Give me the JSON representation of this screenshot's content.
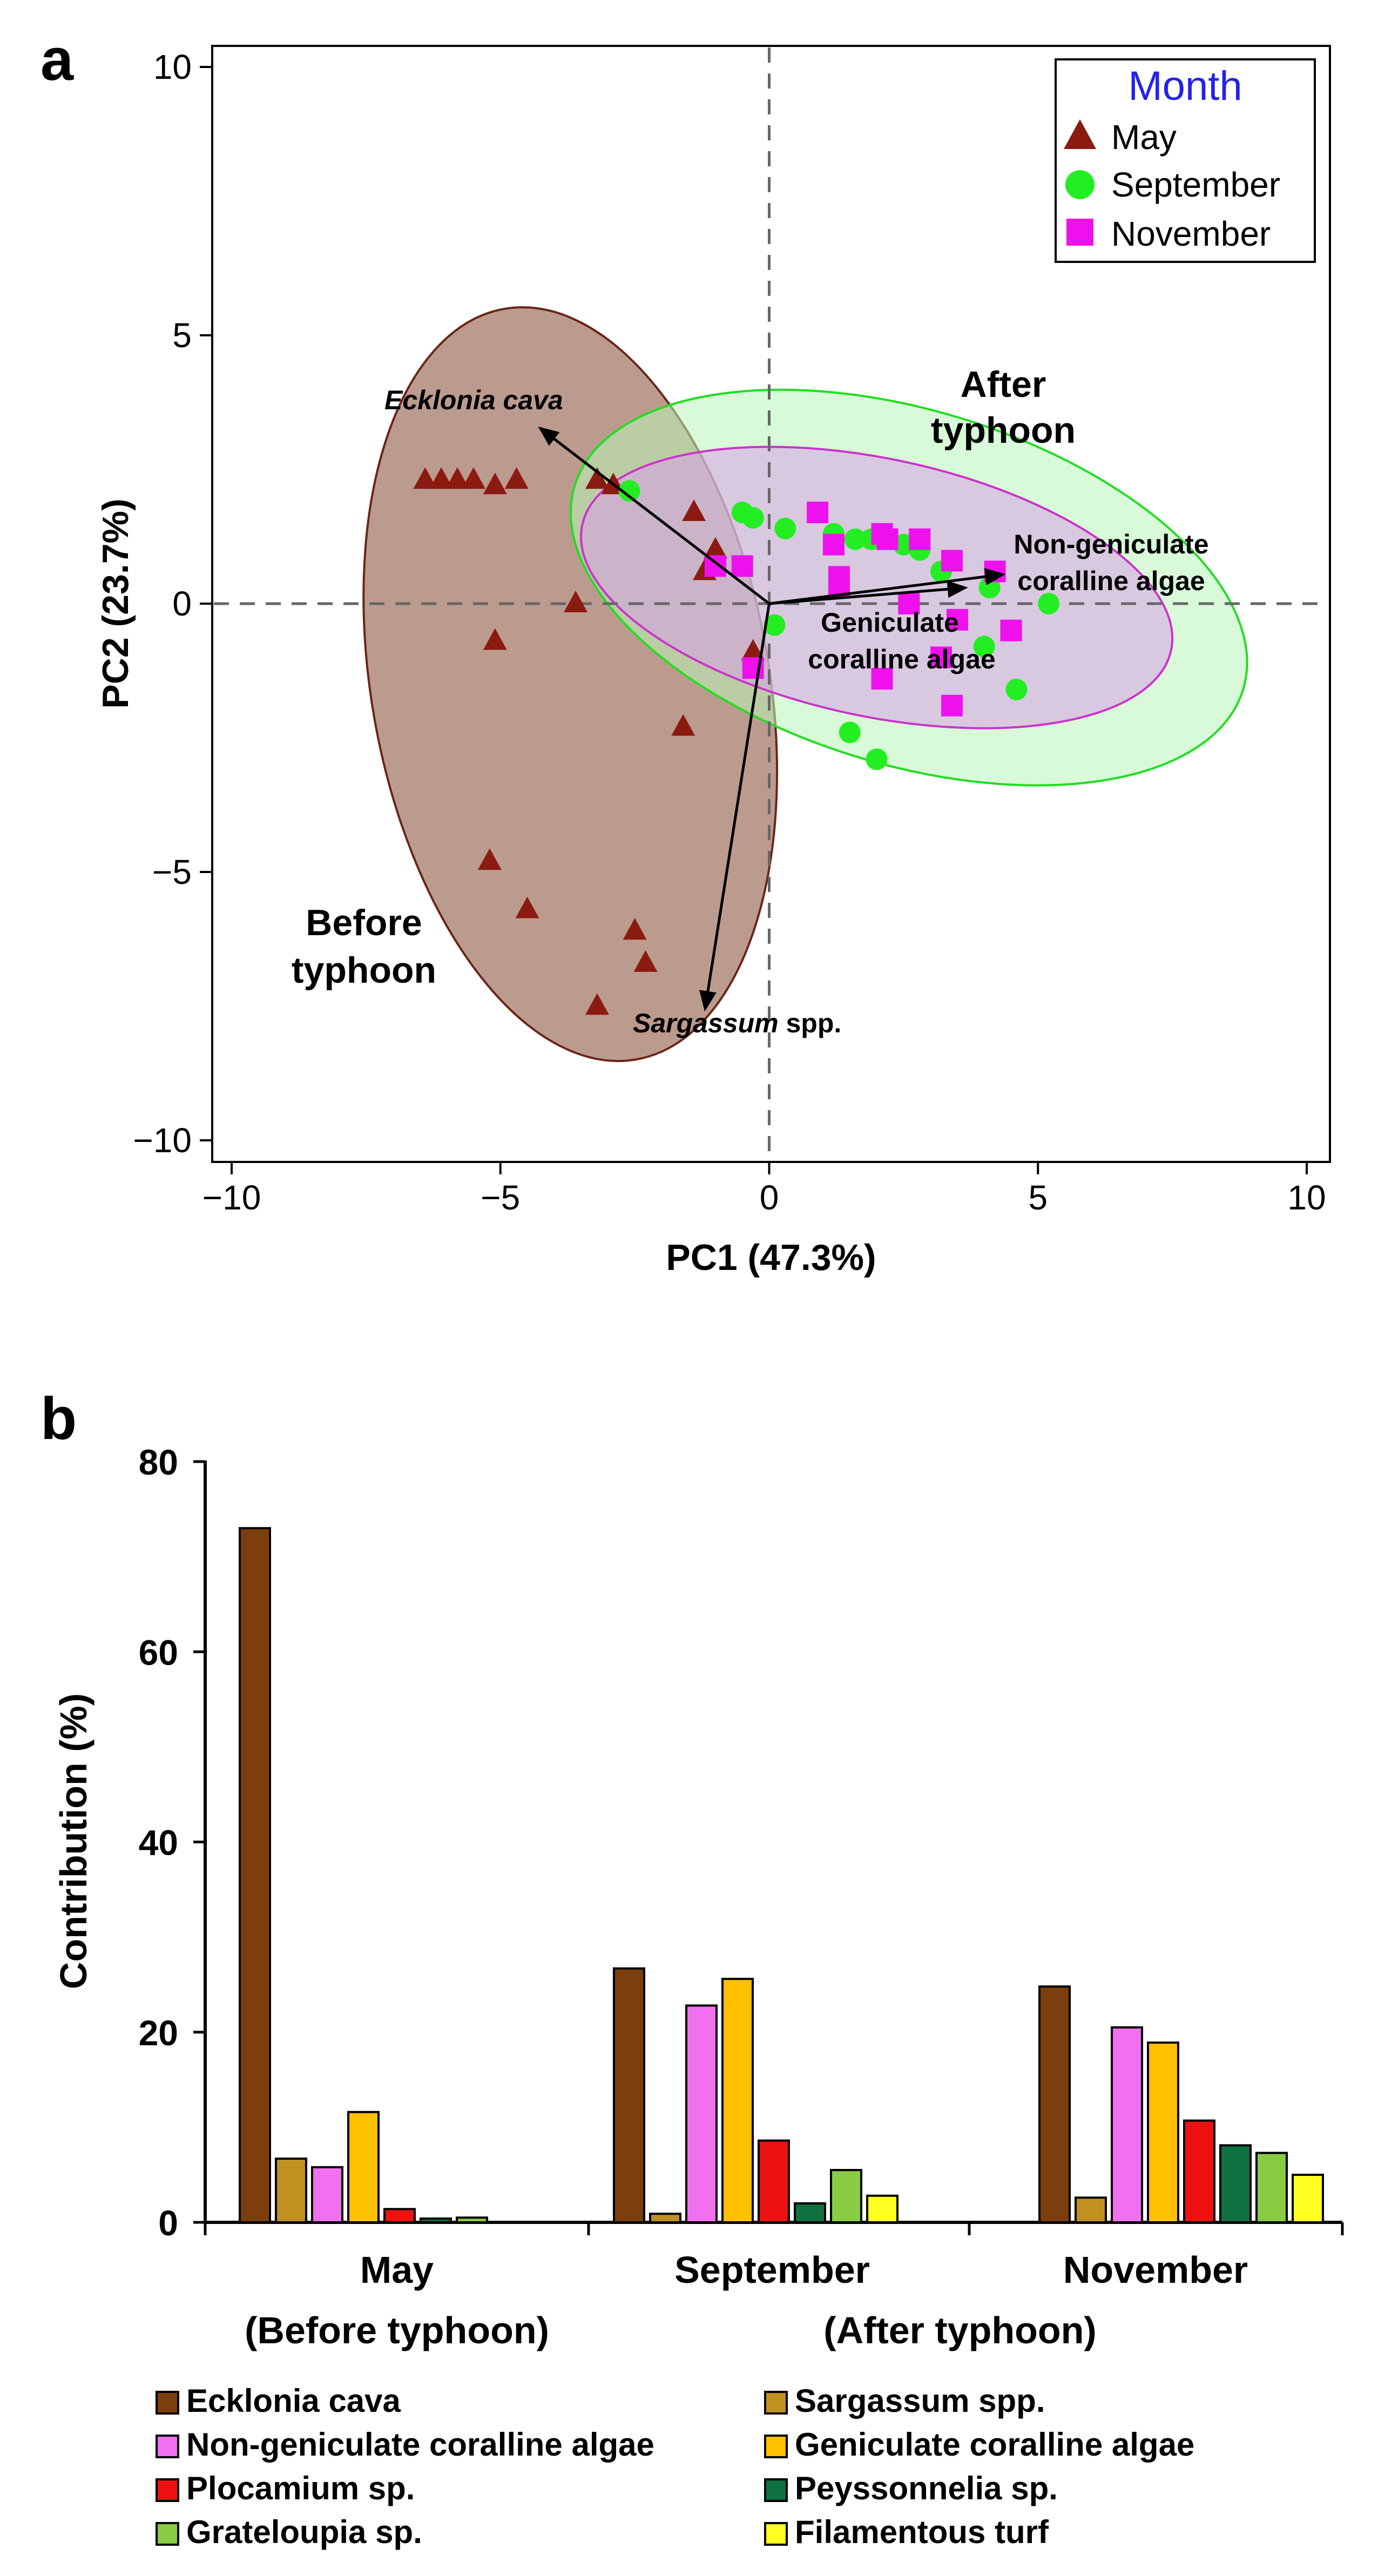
{
  "colors": {
    "may": "#8b1a10",
    "september": "#22ee22",
    "november": "#ee11ee",
    "may_ellipse_fill": "#a07060",
    "may_ellipse_stroke": "#6b2418",
    "sep_ellipse_fill": "#b8f5b8",
    "sep_ellipse_stroke": "#22dd22",
    "nov_ellipse_fill": "#d9a0e8",
    "nov_ellipse_stroke": "#cc33cc",
    "legend_title": "#2222ee",
    "series": [
      "#7b3f0e",
      "#c09020",
      "#f070f0",
      "#ffc000",
      "#ee1111",
      "#107040",
      "#88cc44",
      "#ffff22"
    ]
  },
  "chart_data": [
    {
      "panel": "a",
      "type": "scatter",
      "xlabel": "PC1 (47.3%)",
      "ylabel": "PC2 (23.7%)",
      "xlim": [
        -11,
        10.5
      ],
      "ylim": [
        -10.5,
        10.5
      ],
      "xticks": [
        -10,
        -5,
        0,
        5,
        10
      ],
      "yticks": [
        10,
        5,
        0,
        -5,
        -10
      ],
      "xtick_labels": [
        "−10",
        "−5",
        "0",
        "5",
        "10"
      ],
      "ytick_labels": [
        "10",
        "5",
        "0",
        "−5",
        "−10"
      ],
      "legend": {
        "title": "Month",
        "entries": [
          "May",
          "September",
          "November"
        ]
      },
      "annotations": {
        "after": [
          "After",
          "typhoon"
        ],
        "before": [
          "Before",
          "typhoon"
        ]
      },
      "vectors": [
        {
          "label": "Ecklonia cava",
          "italic_part": "Ecklonia cava",
          "rest": "",
          "x": -4.3,
          "y": 3.3
        },
        {
          "label": "Non-geniculate coralline algae",
          "line1": "Non-geniculate",
          "line2": "coralline algae",
          "x": 4.4,
          "y": 0.55
        },
        {
          "label": "Geniculate coralline algae",
          "line1": "Geniculate",
          "line2": "coralline algae",
          "x": 3.7,
          "y": 0.3
        },
        {
          "label": "Sargassum spp.",
          "italic_part": "Sargassum",
          "rest": " spp.",
          "x": -1.2,
          "y": -7.6
        }
      ],
      "ellipses": [
        {
          "series": "May",
          "cx": -3.7,
          "cy": -1.5,
          "rx": 3.7,
          "ry": 7.1,
          "angle": -10
        },
        {
          "series": "September",
          "cx": 2.6,
          "cy": 0.3,
          "rx": 6.5,
          "ry": 3.3,
          "angle": 17
        },
        {
          "series": "November",
          "cx": 2.0,
          "cy": 0.3,
          "rx": 5.6,
          "ry": 2.4,
          "angle": 12
        }
      ],
      "series": [
        {
          "name": "May",
          "marker": "triangle",
          "points": [
            [
              -6.4,
              2.3
            ],
            [
              -6.1,
              2.3
            ],
            [
              -5.8,
              2.3
            ],
            [
              -5.5,
              2.3
            ],
            [
              -5.1,
              2.2
            ],
            [
              -4.7,
              2.3
            ],
            [
              -3.2,
              2.3
            ],
            [
              -2.9,
              2.2
            ],
            [
              -1.4,
              1.7
            ],
            [
              -1.0,
              1.0
            ],
            [
              -1.2,
              0.6
            ],
            [
              -3.6,
              0.0
            ],
            [
              -5.1,
              -0.7
            ],
            [
              -0.3,
              -0.9
            ],
            [
              -1.6,
              -2.3
            ],
            [
              -5.2,
              -4.8
            ],
            [
              -4.5,
              -5.7
            ],
            [
              -2.5,
              -6.1
            ],
            [
              -2.3,
              -6.7
            ],
            [
              -3.2,
              -7.5
            ]
          ]
        },
        {
          "name": "September",
          "marker": "circle",
          "points": [
            [
              -2.6,
              2.1
            ],
            [
              -0.5,
              1.7
            ],
            [
              -0.3,
              1.6
            ],
            [
              0.3,
              1.4
            ],
            [
              1.2,
              1.3
            ],
            [
              1.6,
              1.2
            ],
            [
              1.9,
              1.2
            ],
            [
              2.5,
              1.1
            ],
            [
              2.8,
              1.0
            ],
            [
              3.2,
              0.6
            ],
            [
              4.1,
              0.3
            ],
            [
              5.2,
              0.0
            ],
            [
              0.1,
              -0.4
            ],
            [
              4.0,
              -0.8
            ],
            [
              4.6,
              -1.6
            ],
            [
              1.5,
              -2.4
            ],
            [
              2.0,
              -2.9
            ]
          ]
        },
        {
          "name": "November",
          "marker": "square",
          "points": [
            [
              0.9,
              1.7
            ],
            [
              1.2,
              1.1
            ],
            [
              2.1,
              1.3
            ],
            [
              2.2,
              1.2
            ],
            [
              2.8,
              1.2
            ],
            [
              -0.5,
              0.7
            ],
            [
              -1.0,
              0.7
            ],
            [
              1.3,
              0.5
            ],
            [
              1.3,
              0.3
            ],
            [
              3.4,
              0.8
            ],
            [
              4.2,
              0.6
            ],
            [
              2.6,
              0.0
            ],
            [
              3.5,
              -0.3
            ],
            [
              4.5,
              -0.5
            ],
            [
              3.2,
              -1.0
            ],
            [
              2.1,
              -1.4
            ],
            [
              3.4,
              -1.9
            ],
            [
              -0.3,
              -1.2
            ]
          ]
        }
      ]
    },
    {
      "panel": "b",
      "type": "bar",
      "ylabel": "Contribution (%)",
      "ylim": [
        0,
        80
      ],
      "yticks": [
        0,
        20,
        40,
        60,
        80
      ],
      "categories": [
        "May",
        "September",
        "November"
      ],
      "category_sublabels": [
        "(Before typhoon)",
        "(After typhoon)"
      ],
      "series": [
        {
          "name": "Ecklonia cava",
          "values": [
            73.0,
            26.7,
            24.8
          ]
        },
        {
          "name": "Sargassum spp.",
          "values": [
            6.7,
            0.9,
            2.6
          ]
        },
        {
          "name": "Non-geniculate coralline algae",
          "values": [
            5.8,
            22.8,
            20.5
          ]
        },
        {
          "name": "Geniculate coralline algae",
          "values": [
            11.6,
            25.6,
            18.9
          ]
        },
        {
          "name": "Plocamium sp.",
          "values": [
            1.4,
            8.6,
            10.7
          ]
        },
        {
          "name": "Peyssonnelia sp.",
          "values": [
            0.4,
            2.0,
            8.1
          ]
        },
        {
          "name": "Grateloupia sp.",
          "values": [
            0.5,
            5.5,
            7.3
          ]
        },
        {
          "name": "Filamentous turf",
          "values": [
            0.0,
            2.8,
            5.0
          ]
        }
      ]
    }
  ],
  "panel_labels": [
    "a",
    "b"
  ]
}
